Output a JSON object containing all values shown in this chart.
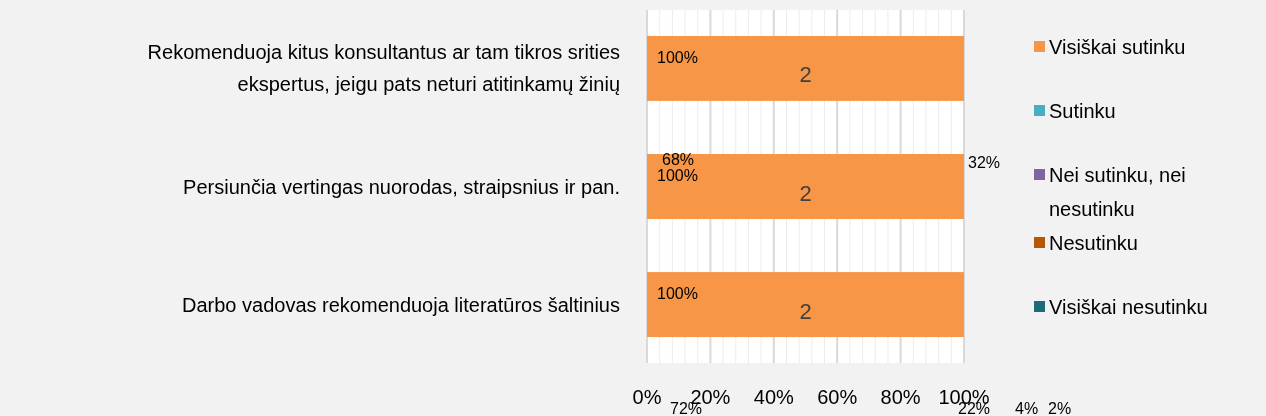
{
  "chart_data": {
    "type": "bar",
    "orientation": "horizontal",
    "stacked": true,
    "categories": [
      "Rekomenduoja kitus konsultantus ar tam tikros srities ekspertus, jeigu pats neturi atitinkamų žinių",
      "Persiunčia vertingas nuorodas, straipsnius ir pan.",
      "Darbo vadovas rekomenduoja literatūros šaltinius"
    ],
    "series": [
      {
        "name": "Visiškai sutinku",
        "color": "#f79646",
        "values": [
          100,
          100,
          100
        ],
        "value_labels": [
          "100%",
          "100%",
          "100%"
        ]
      },
      {
        "name": "Sutinku",
        "color": "#4bacc6",
        "values": [
          0,
          0,
          0
        ]
      },
      {
        "name": "Nei sutinku, nei nesutinku",
        "color": "#8064a2",
        "values": [
          0,
          0,
          0
        ]
      },
      {
        "name": "Nesutinku",
        "color": "#b65708",
        "values": [
          0,
          0,
          0
        ]
      },
      {
        "name": "Visiškai nesutinku",
        "color": "#1f6b75",
        "values": [
          0,
          0,
          0
        ]
      }
    ],
    "xlim": [
      0,
      100
    ],
    "xticks": [
      {
        "value": 0,
        "label": "0%"
      },
      {
        "value": 4,
        "label": null
      },
      {
        "value": 8,
        "label": null
      },
      {
        "value": 12,
        "label": null
      },
      {
        "value": 16,
        "label": null
      },
      {
        "value": 20,
        "label": "20%"
      },
      {
        "value": 24,
        "label": null
      },
      {
        "value": 28,
        "label": null
      },
      {
        "value": 32,
        "label": null
      },
      {
        "value": 36,
        "label": null
      },
      {
        "value": 40,
        "label": "40%"
      },
      {
        "value": 44,
        "label": null
      },
      {
        "value": 48,
        "label": null
      },
      {
        "value": 52,
        "label": null
      },
      {
        "value": 56,
        "label": null
      },
      {
        "value": 60,
        "label": "60%"
      },
      {
        "value": 64,
        "label": null
      },
      {
        "value": 68,
        "label": null
      },
      {
        "value": 72,
        "label": null
      },
      {
        "value": 76,
        "label": null
      },
      {
        "value": 80,
        "label": "80%"
      },
      {
        "value": 84,
        "label": null
      },
      {
        "value": 88,
        "label": null
      },
      {
        "value": 92,
        "label": null
      },
      {
        "value": 96,
        "label": null
      },
      {
        "value": 100,
        "label": "100%"
      }
    ],
    "grid": "x",
    "legend": "right",
    "annotations": [
      "2",
      "2",
      "2",
      "68%",
      "32%",
      "72%",
      "22%",
      "4%",
      "2%"
    ]
  }
}
